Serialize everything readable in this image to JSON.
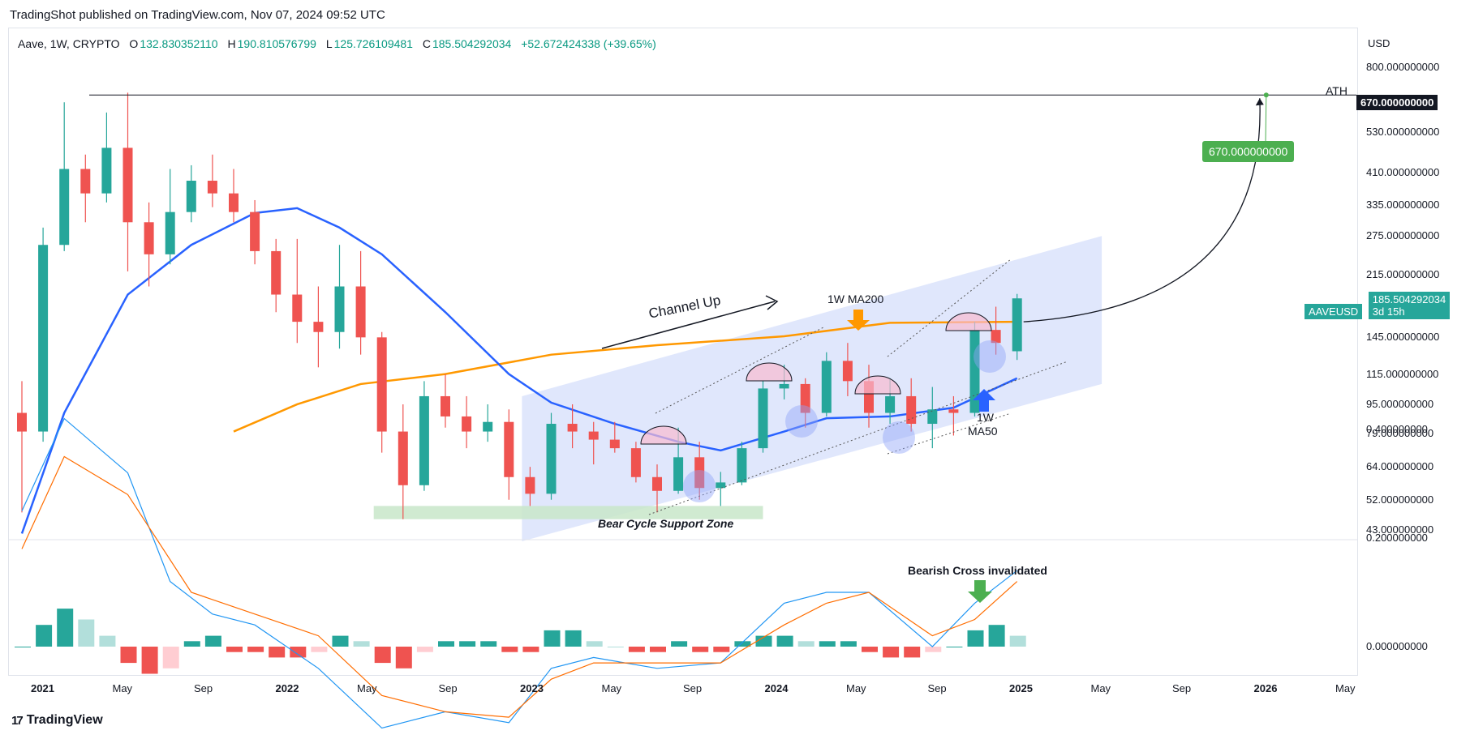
{
  "header": {
    "publisher": "TradingShot published on TradingView.com, Nov 07, 2024 09:52 UTC"
  },
  "legend": {
    "symbol": "Aave, 1W, CRYPTO",
    "open_label": "O",
    "open": "132.830352110",
    "high_label": "H",
    "high": "190.810576799",
    "low_label": "L",
    "low": "125.726109481",
    "close_label": "C",
    "close": "185.504292034",
    "change": "+52.672424338 (+39.65%)"
  },
  "price_axis": {
    "currency": "USD",
    "ticks": [
      "800.000000000",
      "530.000000000",
      "410.000000000",
      "335.000000000",
      "275.000000000",
      "215.000000000",
      "145.000000000",
      "115.000000000",
      "95.000000000",
      "79.000000000",
      "64.000000000",
      "52.000000000",
      "43.000000000"
    ],
    "tick_values": [
      800,
      530,
      410,
      335,
      275,
      215,
      145,
      115,
      95,
      79,
      64,
      52,
      43
    ],
    "ath_badge": "670.000000000",
    "last_price_symbol": "AAVEUSD",
    "last_price": "185.504292034",
    "countdown": "3d 15h"
  },
  "macd_axis": {
    "ticks": [
      "0.400000000",
      "0.200000000",
      "0.000000000"
    ],
    "tick_values": [
      0.4,
      0.2,
      0.0
    ]
  },
  "time_axis": {
    "labels": [
      {
        "text": "2021",
        "year": true
      },
      {
        "text": "May",
        "year": false
      },
      {
        "text": "Sep",
        "year": false
      },
      {
        "text": "2022",
        "year": true
      },
      {
        "text": "May",
        "year": false
      },
      {
        "text": "Sep",
        "year": false
      },
      {
        "text": "2023",
        "year": true
      },
      {
        "text": "May",
        "year": false
      },
      {
        "text": "Sep",
        "year": false
      },
      {
        "text": "2024",
        "year": true
      },
      {
        "text": "May",
        "year": false
      },
      {
        "text": "Sep",
        "year": false
      },
      {
        "text": "2025",
        "year": true
      },
      {
        "text": "May",
        "year": false
      },
      {
        "text": "Sep",
        "year": false
      },
      {
        "text": "2026",
        "year": true
      },
      {
        "text": "May",
        "year": false
      }
    ]
  },
  "annotations": {
    "ath": "ATH",
    "target": "670.000000000",
    "channel_up": "Channel Up",
    "ma200": "1W MA200",
    "ma50_line1": "1W",
    "ma50_line2": "MA50",
    "support": "Bear Cycle Support Zone",
    "bearish_cross": "Bearish Cross invalidated"
  },
  "footer": {
    "brand": "TradingView"
  },
  "colors": {
    "up": "#26a69a",
    "down": "#ef5350",
    "ma50": "#2962ff",
    "ma200": "#ff9800",
    "channel": "#dbe3fb",
    "support": "#c8e6c9",
    "target_green": "#4caf50"
  },
  "chart_data": {
    "type": "candlestick",
    "title": "Aave, 1W, CRYPTO",
    "y_scale": "log",
    "ylim": [
      40,
      900
    ],
    "x_range": [
      "2020-12-01",
      "2026-06-01"
    ],
    "candles": [
      {
        "t": "2020-12",
        "o": 90,
        "h": 110,
        "l": 48,
        "c": 80
      },
      {
        "t": "2021-01",
        "o": 80,
        "h": 290,
        "l": 75,
        "c": 260
      },
      {
        "t": "2021-02",
        "o": 260,
        "h": 640,
        "l": 250,
        "c": 420
      },
      {
        "t": "2021-03",
        "o": 420,
        "h": 460,
        "l": 300,
        "c": 360
      },
      {
        "t": "2021-04",
        "o": 360,
        "h": 600,
        "l": 340,
        "c": 480
      },
      {
        "t": "2021-05",
        "o": 480,
        "h": 680,
        "l": 220,
        "c": 300
      },
      {
        "t": "2021-06",
        "o": 300,
        "h": 340,
        "l": 200,
        "c": 245
      },
      {
        "t": "2021-07",
        "o": 245,
        "h": 420,
        "l": 230,
        "c": 320
      },
      {
        "t": "2021-08",
        "o": 320,
        "h": 430,
        "l": 300,
        "c": 390
      },
      {
        "t": "2021-09",
        "o": 390,
        "h": 460,
        "l": 330,
        "c": 360
      },
      {
        "t": "2021-10",
        "o": 360,
        "h": 420,
        "l": 300,
        "c": 320
      },
      {
        "t": "2021-11",
        "o": 320,
        "h": 345,
        "l": 230,
        "c": 250
      },
      {
        "t": "2021-12",
        "o": 250,
        "h": 270,
        "l": 170,
        "c": 190
      },
      {
        "t": "2022-01",
        "o": 190,
        "h": 270,
        "l": 140,
        "c": 160
      },
      {
        "t": "2022-02",
        "o": 160,
        "h": 200,
        "l": 120,
        "c": 150
      },
      {
        "t": "2022-03",
        "o": 150,
        "h": 260,
        "l": 135,
        "c": 200
      },
      {
        "t": "2022-04",
        "o": 200,
        "h": 250,
        "l": 130,
        "c": 145
      },
      {
        "t": "2022-05",
        "o": 145,
        "h": 150,
        "l": 70,
        "c": 80
      },
      {
        "t": "2022-06",
        "o": 80,
        "h": 95,
        "l": 46,
        "c": 57
      },
      {
        "t": "2022-07",
        "o": 57,
        "h": 110,
        "l": 55,
        "c": 100
      },
      {
        "t": "2022-08",
        "o": 100,
        "h": 115,
        "l": 82,
        "c": 88
      },
      {
        "t": "2022-09",
        "o": 88,
        "h": 100,
        "l": 72,
        "c": 80
      },
      {
        "t": "2022-10",
        "o": 80,
        "h": 95,
        "l": 75,
        "c": 85
      },
      {
        "t": "2022-11",
        "o": 85,
        "h": 92,
        "l": 52,
        "c": 60
      },
      {
        "t": "2022-12",
        "o": 60,
        "h": 64,
        "l": 50,
        "c": 54
      },
      {
        "t": "2023-01",
        "o": 54,
        "h": 90,
        "l": 52,
        "c": 84
      },
      {
        "t": "2023-02",
        "o": 84,
        "h": 95,
        "l": 72,
        "c": 80
      },
      {
        "t": "2023-03",
        "o": 80,
        "h": 85,
        "l": 65,
        "c": 76
      },
      {
        "t": "2023-04",
        "o": 76,
        "h": 85,
        "l": 70,
        "c": 72
      },
      {
        "t": "2023-05",
        "o": 72,
        "h": 75,
        "l": 58,
        "c": 60
      },
      {
        "t": "2023-06",
        "o": 60,
        "h": 65,
        "l": 48,
        "c": 55
      },
      {
        "t": "2023-07",
        "o": 55,
        "h": 82,
        "l": 54,
        "c": 68
      },
      {
        "t": "2023-08",
        "o": 68,
        "h": 75,
        "l": 52,
        "c": 56
      },
      {
        "t": "2023-09",
        "o": 56,
        "h": 62,
        "l": 50,
        "c": 58
      },
      {
        "t": "2023-10",
        "o": 58,
        "h": 75,
        "l": 57,
        "c": 72
      },
      {
        "t": "2023-11",
        "o": 72,
        "h": 110,
        "l": 70,
        "c": 105
      },
      {
        "t": "2023-12",
        "o": 105,
        "h": 122,
        "l": 98,
        "c": 108
      },
      {
        "t": "2024-01",
        "o": 108,
        "h": 112,
        "l": 82,
        "c": 90
      },
      {
        "t": "2024-02",
        "o": 90,
        "h": 132,
        "l": 88,
        "c": 125
      },
      {
        "t": "2024-03",
        "o": 125,
        "h": 140,
        "l": 100,
        "c": 110
      },
      {
        "t": "2024-04",
        "o": 110,
        "h": 122,
        "l": 82,
        "c": 90
      },
      {
        "t": "2024-05",
        "o": 90,
        "h": 112,
        "l": 84,
        "c": 100
      },
      {
        "t": "2024-06",
        "o": 100,
        "h": 112,
        "l": 80,
        "c": 84
      },
      {
        "t": "2024-07",
        "o": 84,
        "h": 106,
        "l": 72,
        "c": 92
      },
      {
        "t": "2024-08",
        "o": 92,
        "h": 100,
        "l": 78,
        "c": 90
      },
      {
        "t": "2024-09",
        "o": 90,
        "h": 160,
        "l": 88,
        "c": 152
      },
      {
        "t": "2024-10",
        "o": 152,
        "h": 176,
        "l": 130,
        "c": 140
      },
      {
        "t": "2024-11",
        "o": 132.83,
        "h": 190.81,
        "l": 125.73,
        "c": 185.5
      }
    ],
    "ma50": [
      {
        "t": "2020-12",
        "v": 42
      },
      {
        "t": "2021-02",
        "v": 90
      },
      {
        "t": "2021-05",
        "v": 190
      },
      {
        "t": "2021-08",
        "v": 260
      },
      {
        "t": "2021-11",
        "v": 318
      },
      {
        "t": "2022-01",
        "v": 328
      },
      {
        "t": "2022-03",
        "v": 290
      },
      {
        "t": "2022-05",
        "v": 245
      },
      {
        "t": "2022-08",
        "v": 170
      },
      {
        "t": "2022-11",
        "v": 115
      },
      {
        "t": "2023-01",
        "v": 96
      },
      {
        "t": "2023-04",
        "v": 84
      },
      {
        "t": "2023-07",
        "v": 75
      },
      {
        "t": "2023-09",
        "v": 71
      },
      {
        "t": "2023-12",
        "v": 80
      },
      {
        "t": "2024-02",
        "v": 87
      },
      {
        "t": "2024-05",
        "v": 88
      },
      {
        "t": "2024-08",
        "v": 93
      },
      {
        "t": "2024-11",
        "v": 112
      }
    ],
    "ma200": [
      {
        "t": "2021-10",
        "v": 80
      },
      {
        "t": "2022-01",
        "v": 95
      },
      {
        "t": "2022-04",
        "v": 108
      },
      {
        "t": "2022-08",
        "v": 115
      },
      {
        "t": "2023-01",
        "v": 130
      },
      {
        "t": "2023-06",
        "v": 138
      },
      {
        "t": "2023-12",
        "v": 146
      },
      {
        "t": "2024-05",
        "v": 159
      },
      {
        "t": "2024-11",
        "v": 160
      }
    ],
    "macd": {
      "macd_line": [
        {
          "t": "2020-12",
          "v": 0.25
        },
        {
          "t": "2021-02",
          "v": 0.42
        },
        {
          "t": "2021-05",
          "v": 0.32
        },
        {
          "t": "2021-07",
          "v": 0.12
        },
        {
          "t": "2021-09",
          "v": 0.06
        },
        {
          "t": "2021-11",
          "v": 0.04
        },
        {
          "t": "2022-02",
          "v": -0.04
        },
        {
          "t": "2022-05",
          "v": -0.15
        },
        {
          "t": "2022-08",
          "v": -0.12
        },
        {
          "t": "2022-11",
          "v": -0.14
        },
        {
          "t": "2023-01",
          "v": -0.04
        },
        {
          "t": "2023-03",
          "v": -0.02
        },
        {
          "t": "2023-06",
          "v": -0.04
        },
        {
          "t": "2023-09",
          "v": -0.03
        },
        {
          "t": "2023-12",
          "v": 0.08
        },
        {
          "t": "2024-02",
          "v": 0.1
        },
        {
          "t": "2024-04",
          "v": 0.1
        },
        {
          "t": "2024-07",
          "v": 0.0
        },
        {
          "t": "2024-09",
          "v": 0.08
        },
        {
          "t": "2024-11",
          "v": 0.14
        }
      ],
      "signal_line": [
        {
          "t": "2020-12",
          "v": 0.18
        },
        {
          "t": "2021-02",
          "v": 0.35
        },
        {
          "t": "2021-05",
          "v": 0.28
        },
        {
          "t": "2021-08",
          "v": 0.1
        },
        {
          "t": "2021-11",
          "v": 0.06
        },
        {
          "t": "2022-02",
          "v": 0.02
        },
        {
          "t": "2022-05",
          "v": -0.09
        },
        {
          "t": "2022-08",
          "v": -0.12
        },
        {
          "t": "2022-11",
          "v": -0.13
        },
        {
          "t": "2023-01",
          "v": -0.06
        },
        {
          "t": "2023-03",
          "v": -0.03
        },
        {
          "t": "2023-06",
          "v": -0.03
        },
        {
          "t": "2023-09",
          "v": -0.03
        },
        {
          "t": "2023-12",
          "v": 0.04
        },
        {
          "t": "2024-02",
          "v": 0.08
        },
        {
          "t": "2024-04",
          "v": 0.1
        },
        {
          "t": "2024-07",
          "v": 0.02
        },
        {
          "t": "2024-09",
          "v": 0.05
        },
        {
          "t": "2024-11",
          "v": 0.12
        }
      ],
      "histogram": [
        {
          "t": "2020-12",
          "v": 0.0
        },
        {
          "t": "2021-01",
          "v": 0.04
        },
        {
          "t": "2021-02",
          "v": 0.07
        },
        {
          "t": "2021-03",
          "v": 0.05
        },
        {
          "t": "2021-04",
          "v": 0.02
        },
        {
          "t": "2021-05",
          "v": -0.03
        },
        {
          "t": "2021-06",
          "v": -0.05
        },
        {
          "t": "2021-07",
          "v": -0.04
        },
        {
          "t": "2021-08",
          "v": 0.01
        },
        {
          "t": "2021-09",
          "v": 0.02
        },
        {
          "t": "2021-10",
          "v": -0.01
        },
        {
          "t": "2021-11",
          "v": -0.01
        },
        {
          "t": "2021-12",
          "v": -0.02
        },
        {
          "t": "2022-01",
          "v": -0.02
        },
        {
          "t": "2022-02",
          "v": -0.01
        },
        {
          "t": "2022-03",
          "v": 0.02
        },
        {
          "t": "2022-04",
          "v": 0.01
        },
        {
          "t": "2022-05",
          "v": -0.03
        },
        {
          "t": "2022-06",
          "v": -0.04
        },
        {
          "t": "2022-07",
          "v": -0.01
        },
        {
          "t": "2022-08",
          "v": 0.01
        },
        {
          "t": "2022-09",
          "v": 0.01
        },
        {
          "t": "2022-10",
          "v": 0.01
        },
        {
          "t": "2022-11",
          "v": -0.01
        },
        {
          "t": "2022-12",
          "v": -0.01
        },
        {
          "t": "2023-01",
          "v": 0.03
        },
        {
          "t": "2023-02",
          "v": 0.03
        },
        {
          "t": "2023-03",
          "v": 0.01
        },
        {
          "t": "2023-04",
          "v": 0.0
        },
        {
          "t": "2023-05",
          "v": -0.01
        },
        {
          "t": "2023-06",
          "v": -0.01
        },
        {
          "t": "2023-07",
          "v": 0.01
        },
        {
          "t": "2023-08",
          "v": -0.01
        },
        {
          "t": "2023-09",
          "v": -0.01
        },
        {
          "t": "2023-10",
          "v": 0.01
        },
        {
          "t": "2023-11",
          "v": 0.02
        },
        {
          "t": "2023-12",
          "v": 0.02
        },
        {
          "t": "2024-01",
          "v": 0.01
        },
        {
          "t": "2024-02",
          "v": 0.01
        },
        {
          "t": "2024-03",
          "v": 0.01
        },
        {
          "t": "2024-04",
          "v": -0.01
        },
        {
          "t": "2024-05",
          "v": -0.02
        },
        {
          "t": "2024-06",
          "v": -0.02
        },
        {
          "t": "2024-07",
          "v": -0.01
        },
        {
          "t": "2024-08",
          "v": 0.0
        },
        {
          "t": "2024-09",
          "v": 0.03
        },
        {
          "t": "2024-10",
          "v": 0.04
        },
        {
          "t": "2024-11",
          "v": 0.02
        }
      ]
    },
    "ath_level": 670,
    "channel": {
      "bottom_start": {
        "t": "2022-12",
        "v": 40
      },
      "bottom_end": {
        "t": "2025-03",
        "v": 108
      },
      "top_start": {
        "t": "2022-12",
        "v": 100
      },
      "top_end": {
        "t": "2025-03",
        "v": 275
      }
    },
    "support_zone": {
      "t_start": "2022-05",
      "t_end": "2023-11",
      "low": 46,
      "high": 50
    },
    "projection": {
      "from": {
        "t": "2024-11",
        "v": 160
      },
      "to": {
        "t": "2025-10",
        "v": 670
      }
    }
  }
}
